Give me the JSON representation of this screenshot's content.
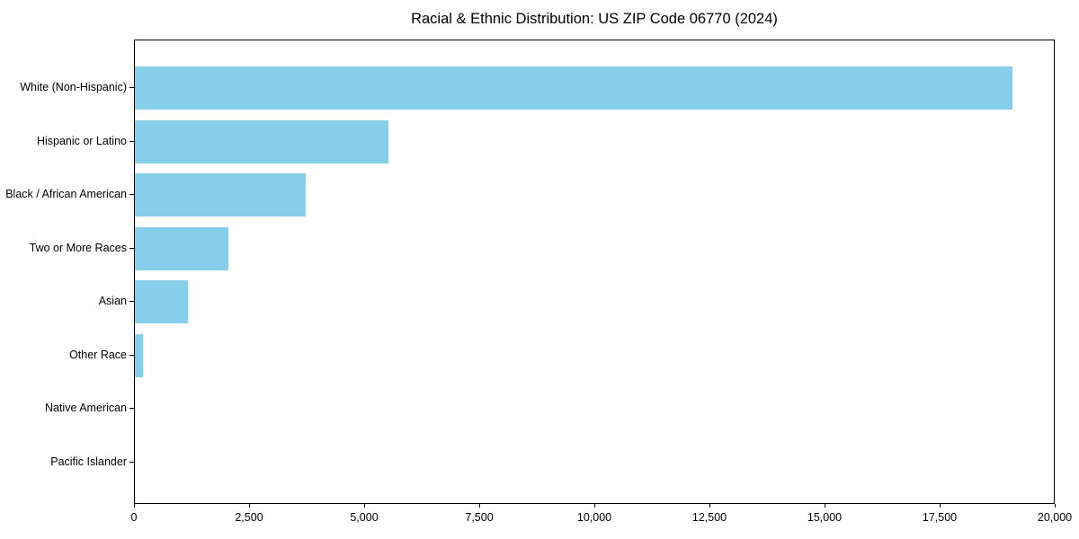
{
  "chart_data": {
    "type": "bar",
    "orientation": "horizontal",
    "title": "Racial & Ethnic Distribution: US ZIP Code 06770 (2024)",
    "categories": [
      "White (Non-Hispanic)",
      "Hispanic or Latino",
      "Black / African American",
      "Two or More Races",
      "Asian",
      "Other Race",
      "Native American",
      "Pacific Islander"
    ],
    "values": [
      19100,
      5510,
      3710,
      2030,
      1150,
      170,
      0,
      0
    ],
    "xlabel": "",
    "ylabel": "",
    "xlim": [
      0,
      20000
    ],
    "x_ticks": [
      0,
      2500,
      5000,
      7500,
      10000,
      12500,
      15000,
      17500,
      20000
    ],
    "x_tick_labels": [
      "0",
      "2,500",
      "5,000",
      "7,500",
      "10,000",
      "12,500",
      "15,000",
      "17,500",
      "20,000"
    ],
    "bar_color": "#87CEEB",
    "grid": false,
    "legend": null
  }
}
